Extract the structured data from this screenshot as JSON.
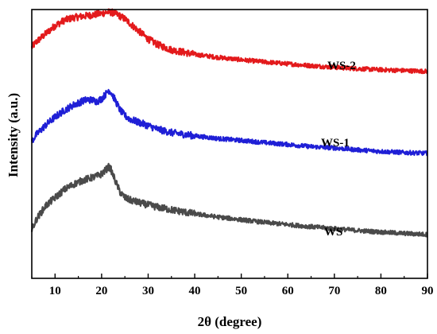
{
  "chart_data": {
    "type": "line",
    "title": "",
    "xlabel": "2θ (degree)",
    "ylabel": "Intensity (a.u.)",
    "xlim": [
      5,
      90
    ],
    "ylim": [
      0,
      100
    ],
    "x_ticks": [
      10,
      20,
      30,
      40,
      50,
      60,
      70,
      80,
      90
    ],
    "x_tick_labels": [
      "10",
      "20",
      "30",
      "40",
      "50",
      "60",
      "70",
      "80",
      "90"
    ],
    "y_ticks_shown": false,
    "grid": false,
    "legend": "none",
    "series": [
      {
        "name": "WS-2",
        "color": "#e31a1c",
        "x": [
          5,
          6,
          8,
          10,
          12,
          14,
          16,
          18,
          20,
          21,
          22,
          23,
          24,
          25,
          26,
          28,
          30,
          32,
          35,
          38,
          40,
          45,
          50,
          55,
          60,
          65,
          70,
          75,
          80,
          85,
          90
        ],
        "y": [
          86,
          88,
          91,
          94,
          96,
          97,
          97.5,
          98,
          98.5,
          99,
          99,
          98.5,
          97.5,
          96.5,
          95,
          92,
          89,
          87,
          85,
          84,
          83.3,
          82.2,
          81.3,
          80.5,
          79.8,
          79.1,
          78.5,
          78,
          77.6,
          77.3,
          77
        ]
      },
      {
        "name": "WS-1",
        "color": "#1f1fd6",
        "x": [
          5,
          6,
          8,
          10,
          12,
          14,
          16,
          17,
          18,
          19,
          20,
          21,
          21.5,
          22,
          23,
          24,
          25,
          26,
          28,
          30,
          32,
          35,
          40,
          45,
          50,
          55,
          60,
          65,
          70,
          75,
          80,
          85,
          90
        ],
        "y": [
          51,
          53.5,
          57,
          60,
          62.5,
          64.5,
          66,
          66.5,
          66.3,
          65.8,
          66.8,
          68.8,
          70,
          69.3,
          66,
          62.5,
          60.5,
          59.3,
          58,
          56.8,
          55.5,
          54.2,
          53,
          52,
          51.3,
          50.5,
          49.8,
          49,
          48.5,
          47.8,
          47.2,
          46.8,
          46.5
        ]
      },
      {
        "name": "WS",
        "color": "#4a4a4a",
        "x": [
          5,
          6,
          8,
          10,
          12,
          14,
          16,
          18,
          19,
          20,
          21,
          21.5,
          22,
          23,
          24,
          25,
          26,
          28,
          30,
          32,
          35,
          40,
          45,
          50,
          55,
          60,
          65,
          70,
          75,
          80,
          85,
          90
        ],
        "y": [
          18,
          22,
          27,
          30,
          33,
          35,
          36.5,
          37.5,
          38,
          38.8,
          40.5,
          41.5,
          40.5,
          36,
          32,
          30,
          29.2,
          28.2,
          27.3,
          26.5,
          25.5,
          24,
          22.8,
          21.8,
          20.8,
          20,
          19.2,
          18.5,
          17.8,
          17.2,
          16.7,
          16.3
        ]
      }
    ],
    "annotations": [
      {
        "text": "WS-2",
        "series": "WS-2"
      },
      {
        "text": "WS-1",
        "series": "WS-1"
      },
      {
        "text": "WS",
        "series": "WS"
      }
    ]
  }
}
